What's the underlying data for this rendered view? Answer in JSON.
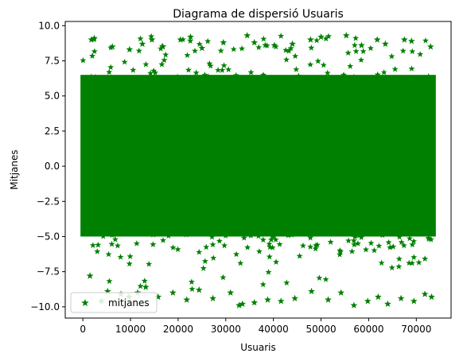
{
  "chart_data": {
    "type": "scatter",
    "title": "Diagrama de dispersió Usuaris",
    "xlabel": "Usuaris",
    "ylabel": "Mitjanes",
    "xlim": [
      -3700,
      77300
    ],
    "ylim": [
      -10.8,
      10.3
    ],
    "xticks": [
      0,
      10000,
      20000,
      30000,
      40000,
      50000,
      60000,
      70000
    ],
    "yticks": [
      -10.0,
      -7.5,
      -5.0,
      -2.5,
      0.0,
      2.5,
      5.0,
      7.5,
      10.0
    ],
    "xtick_labels": [
      "0",
      "10000",
      "20000",
      "30000",
      "40000",
      "50000",
      "60000",
      "70000"
    ],
    "ytick_labels": [
      "−10.0",
      "−7.5",
      "−5.0",
      "−2.5",
      "0.0",
      "2.5",
      "5.0",
      "7.5",
      "10.0"
    ],
    "grid": false,
    "legend_position": "lower-left",
    "series": [
      {
        "name": "mitjanes",
        "marker": "star",
        "color": "#008000",
        "x_range": [
          0,
          73600
        ],
        "dense_band": [
          -5.0,
          6.5
        ],
        "y_range": [
          -10.0,
          9.3
        ],
        "points": [
          [
            1800,
            9.0
          ],
          [
            2400,
            9.1
          ],
          [
            6200,
            8.5
          ],
          [
            9800,
            8.3
          ],
          [
            12500,
            8.7
          ],
          [
            14500,
            9.0
          ],
          [
            16800,
            8.5
          ],
          [
            20500,
            9.0
          ],
          [
            22600,
            9.2
          ],
          [
            25000,
            8.4
          ],
          [
            29500,
            8.8
          ],
          [
            34500,
            9.3
          ],
          [
            36000,
            8.8
          ],
          [
            40200,
            8.6
          ],
          [
            44000,
            8.7
          ],
          [
            47800,
            9.0
          ],
          [
            50000,
            9.2
          ],
          [
            55300,
            9.3
          ],
          [
            58500,
            8.6
          ],
          [
            61800,
            9.0
          ],
          [
            63500,
            8.7
          ],
          [
            67500,
            9.0
          ],
          [
            69000,
            8.9
          ],
          [
            73000,
            8.5
          ],
          [
            1500,
            -7.8
          ],
          [
            3900,
            -9.6
          ],
          [
            5200,
            -8.9
          ],
          [
            8000,
            -9.1
          ],
          [
            9700,
            -9.3
          ],
          [
            11500,
            -9.0
          ],
          [
            13200,
            -8.6
          ],
          [
            15800,
            -9.3
          ],
          [
            18900,
            -9.0
          ],
          [
            21800,
            -9.5
          ],
          [
            24400,
            -8.8
          ],
          [
            27300,
            -9.4
          ],
          [
            31000,
            -9.0
          ],
          [
            33500,
            -9.8
          ],
          [
            36000,
            -9.7
          ],
          [
            38800,
            -9.5
          ],
          [
            41600,
            -9.6
          ],
          [
            44500,
            -9.4
          ],
          [
            48000,
            -8.9
          ],
          [
            51500,
            -9.5
          ],
          [
            54200,
            -9.0
          ],
          [
            56900,
            -9.9
          ],
          [
            59800,
            -9.6
          ],
          [
            62000,
            -9.3
          ],
          [
            64000,
            -9.8
          ],
          [
            66800,
            -9.4
          ],
          [
            69500,
            -9.6
          ],
          [
            71800,
            -9.1
          ],
          [
            73200,
            -9.3
          ],
          [
            32800,
            -9.9
          ]
        ]
      }
    ]
  }
}
